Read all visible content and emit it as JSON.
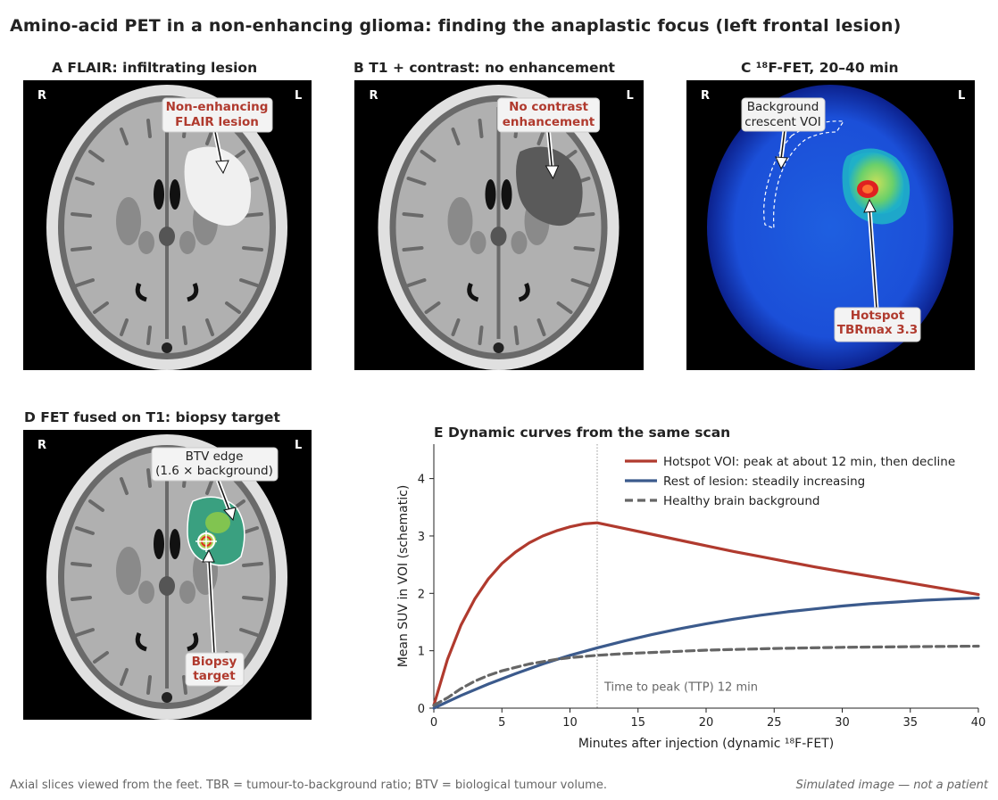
{
  "title": "Amino-acid PET in a non-enhancing glioma: finding the anaplastic focus (left frontal lesion)",
  "panels": {
    "a": {
      "title": "A  FLAIR: infiltrating lesion",
      "side_left": "R",
      "side_right": "L",
      "callout_line1": "Non-enhancing",
      "callout_line2": "FLAIR lesion"
    },
    "b": {
      "title": "B  T1 + contrast: no enhancement",
      "side_left": "R",
      "side_right": "L",
      "callout_line1": "No contrast",
      "callout_line2": "enhancement"
    },
    "c": {
      "title": "C  ¹⁸F-FET, 20–40 min",
      "side_left": "R",
      "side_right": "L",
      "bg_line1": "Background",
      "bg_line2": "crescent VOI",
      "hot_line1": "Hotspot",
      "hot_line2": "TBRmax 3.3"
    },
    "d": {
      "title": "D  FET fused on T1: biopsy target",
      "side_left": "R",
      "side_right": "L",
      "btv_line1": "BTV edge",
      "btv_line2": "(1.6 × background)",
      "biopsy_line1": "Biopsy",
      "biopsy_line2": "target"
    }
  },
  "colors": {
    "hotspot": "#b03a2e",
    "lesion": "#3b5a8c",
    "background": "#666666",
    "callout_red": "#b03a2e"
  },
  "chart_data": {
    "type": "line",
    "title": "E  Dynamic curves from the same scan",
    "xlabel": "Minutes after injection (dynamic ¹⁸F-FET)",
    "ylabel": "Mean SUV in VOI (schematic)",
    "xlim": [
      0,
      40
    ],
    "ylim": [
      0,
      4.6
    ],
    "xticks": [
      0,
      5,
      10,
      15,
      20,
      25,
      30,
      35,
      40
    ],
    "yticks": [
      0,
      1,
      2,
      3,
      4
    ],
    "grid": false,
    "legend_position": "top-right",
    "annotation": "Time to peak (TTP) 12 min",
    "ttp_x": 12,
    "series": [
      {
        "name": "Hotspot VOI: peak at about 12 min, then decline",
        "style": "solid",
        "color": "#b03a2e",
        "x": [
          0,
          1,
          2,
          3,
          4,
          5,
          6,
          7,
          8,
          9,
          10,
          11,
          12,
          14,
          16,
          18,
          20,
          22,
          24,
          26,
          28,
          30,
          32,
          34,
          36,
          38,
          40
        ],
        "y": [
          0.05,
          0.85,
          1.45,
          1.9,
          2.25,
          2.52,
          2.72,
          2.88,
          3.0,
          3.09,
          3.16,
          3.21,
          3.23,
          3.13,
          3.03,
          2.93,
          2.83,
          2.73,
          2.64,
          2.55,
          2.46,
          2.38,
          2.3,
          2.22,
          2.14,
          2.06,
          1.98
        ]
      },
      {
        "name": "Rest of lesion: steadily increasing",
        "style": "solid",
        "color": "#3b5a8c",
        "x": [
          0,
          2,
          4,
          6,
          8,
          10,
          12,
          14,
          16,
          18,
          20,
          22,
          24,
          26,
          28,
          30,
          32,
          34,
          36,
          38,
          40
        ],
        "y": [
          0.0,
          0.22,
          0.42,
          0.6,
          0.77,
          0.92,
          1.05,
          1.17,
          1.28,
          1.38,
          1.47,
          1.55,
          1.62,
          1.68,
          1.73,
          1.78,
          1.82,
          1.85,
          1.88,
          1.9,
          1.92
        ]
      },
      {
        "name": "Healthy brain background",
        "style": "dashed",
        "color": "#666666",
        "x": [
          0,
          1,
          2,
          3,
          4,
          5,
          6,
          7,
          8,
          9,
          10,
          12,
          14,
          16,
          18,
          20,
          25,
          30,
          35,
          40
        ],
        "y": [
          0.05,
          0.18,
          0.34,
          0.47,
          0.57,
          0.65,
          0.71,
          0.77,
          0.81,
          0.85,
          0.88,
          0.92,
          0.95,
          0.97,
          0.99,
          1.01,
          1.04,
          1.06,
          1.07,
          1.08
        ]
      }
    ]
  },
  "footer": {
    "left": "Axial slices viewed from the feet. TBR = tumour-to-background ratio; BTV = biological tumour volume.",
    "right": "Simulated image — not a patient"
  }
}
